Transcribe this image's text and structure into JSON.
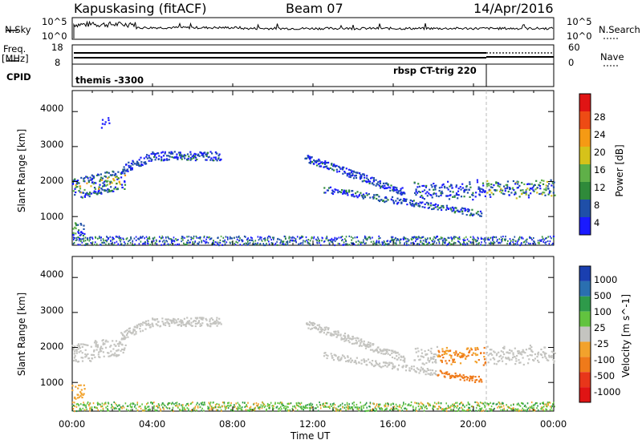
{
  "header": {
    "station": "Kapuskasing (fitACF)",
    "beam": "Beam 07",
    "date": "14/Apr/2016"
  },
  "top_panels": {
    "nsky_label": "N.Sky",
    "nsky_ticks_left": [
      "10^5",
      "10^0"
    ],
    "nsky_ticks_right": [
      "10^5",
      "10^0"
    ],
    "nsearch_label": "N.Search",
    "freq_label": "Freq.",
    "freq_unit": "[MHz]",
    "freq_ticks": [
      "18",
      "8"
    ],
    "nave_ticks": [
      "60",
      "0"
    ],
    "nave_label": "Nave",
    "cpid_label": "CPID",
    "cpid_segments": [
      "themis -3300",
      "rbsp CT-trig 220"
    ]
  },
  "chart_data": [
    {
      "type": "heatmap",
      "name": "power",
      "ylabel": "Slant Range [km]",
      "yticks": [
        "4000",
        "3000",
        "2000",
        "1000"
      ],
      "ylim": [
        180,
        4600
      ],
      "xlim_hours": [
        0,
        24
      ],
      "colorbar_label": "Power [dB]",
      "colorbar_ticks": [
        "28",
        "24",
        "20",
        "16",
        "12",
        "8",
        "4"
      ],
      "colors": [
        "#1a1aff",
        "#1f4fa8",
        "#2f8a3a",
        "#5fb048",
        "#d6c21a",
        "#f59a14",
        "#ee4b14",
        "#e01414"
      ]
    },
    {
      "type": "heatmap",
      "name": "velocity",
      "ylabel": "Slant Range [km]",
      "yticks": [
        "4000",
        "3000",
        "2000",
        "1000"
      ],
      "ylim": [
        180,
        4600
      ],
      "xlim_hours": [
        0,
        24
      ],
      "colorbar_label": "Velocity [m s^-1]",
      "colorbar_ticks": [
        "1000",
        "500",
        "100",
        "25",
        "-25",
        "-100",
        "-500",
        "-1000"
      ],
      "colors": [
        "#1a3fb0",
        "#2a6fb0",
        "#2e9a4a",
        "#62c33f",
        "#c4c4c0",
        "#f2a22c",
        "#ef7a1a",
        "#e8361a",
        "#e01414"
      ]
    }
  ],
  "x_axis": {
    "ticks": [
      "00:00",
      "04:00",
      "08:00",
      "12:00",
      "16:00",
      "20:00",
      "00:00"
    ],
    "label": "Time UT"
  }
}
